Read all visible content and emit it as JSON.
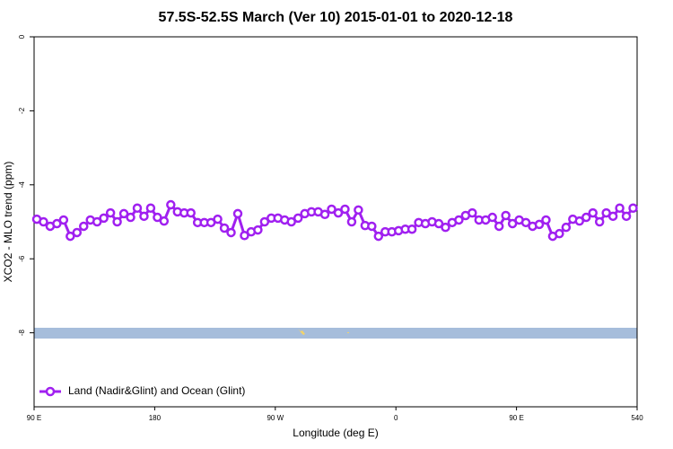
{
  "chart_data": {
    "type": "line",
    "title": "57.5S-52.5S March (Ver 10)   2015-01-01 to 2020-12-18",
    "x_label": "Longitude (deg E)",
    "y_label": "XCO2 - MLO trend (ppm)",
    "x": [
      92,
      97,
      102,
      107,
      112,
      117,
      122,
      127,
      132,
      137,
      142,
      147,
      152,
      157,
      162,
      167,
      172,
      177,
      182,
      187,
      192,
      197,
      202,
      207,
      212,
      217,
      222,
      227,
      232,
      237,
      242,
      247,
      252,
      257,
      262,
      267,
      272,
      277,
      282,
      287,
      292,
      297,
      302,
      307,
      312,
      317,
      322,
      327,
      332,
      337,
      342,
      347,
      352,
      357,
      362,
      367,
      372,
      377,
      382,
      387,
      392,
      397,
      402,
      407,
      412,
      417,
      422,
      427,
      432,
      437,
      442,
      447,
      452,
      457,
      462,
      467,
      472,
      477,
      482,
      487,
      492,
      497,
      502,
      507,
      512,
      517,
      522,
      527,
      532,
      537
    ],
    "series": [
      {
        "name": "Land (Nadir&Glint) and Ocean (Glint)",
        "color": "#a020f0",
        "values": [
          -4.93,
          -5.0,
          -5.12,
          -5.05,
          -4.95,
          -5.39,
          -5.29,
          -5.12,
          -4.95,
          -5.0,
          -4.9,
          -4.76,
          -5.0,
          -4.78,
          -4.88,
          -4.63,
          -4.85,
          -4.63,
          -4.88,
          -4.98,
          -4.54,
          -4.73,
          -4.76,
          -4.76,
          -5.02,
          -5.02,
          -5.02,
          -4.93,
          -5.17,
          -5.29,
          -4.78,
          -5.37,
          -5.27,
          -5.22,
          -5.0,
          -4.9,
          -4.9,
          -4.95,
          -5.0,
          -4.9,
          -4.78,
          -4.73,
          -4.73,
          -4.8,
          -4.66,
          -4.76,
          -4.66,
          -5.0,
          -4.68,
          -5.1,
          -5.12,
          -5.39,
          -5.27,
          -5.27,
          -5.24,
          -5.2,
          -5.2,
          -5.02,
          -5.05,
          -5.0,
          -5.05,
          -5.15,
          -5.02,
          -4.95,
          -4.83,
          -4.76,
          -4.95,
          -4.95,
          -4.88,
          -5.12,
          -4.83,
          -5.05,
          -4.95,
          -5.02,
          -5.12,
          -5.07,
          -4.95,
          -5.39,
          -5.32,
          -5.15,
          -4.93,
          -4.98,
          -4.88,
          -4.76,
          -5.0,
          -4.76,
          -4.85,
          -4.63,
          -4.85,
          -4.63
        ]
      }
    ],
    "xlim": [
      90,
      540
    ],
    "xticks": [
      {
        "value": 90,
        "label": "90 E"
      },
      180,
      {
        "value": 270,
        "label": "90 W"
      },
      {
        "value": 360,
        "label": "0"
      },
      {
        "value": 450,
        "label": "90 E"
      },
      540
    ],
    "ylim": [
      -10,
      0
    ],
    "yticks": [
      0,
      -2,
      -4,
      -6,
      -8
    ],
    "legend": "bottom-left"
  }
}
